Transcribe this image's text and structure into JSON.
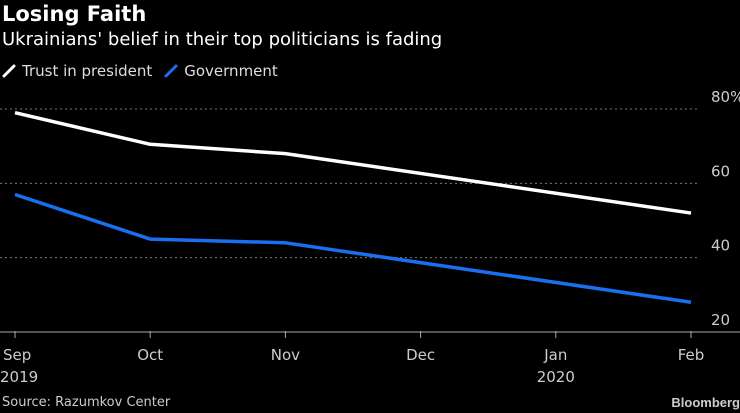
{
  "header": {
    "title": "Losing Faith",
    "subtitle": "Ukrainians' belief in their top politicians is fading"
  },
  "footer": {
    "source": "Source: Razumkov Center",
    "brand": "Bloomberg"
  },
  "chart_data": {
    "type": "line",
    "title": "Losing Faith",
    "subtitle": "Ukrainians' belief in their top politicians is fading",
    "xlabel": "",
    "ylabel": "",
    "x": [
      "Sep 2019",
      "Oct 2019",
      "Nov 2019",
      "Feb 2020"
    ],
    "x_ticks": [
      {
        "label": "Sep",
        "sublabel": "2019",
        "month_index": 0
      },
      {
        "label": "Oct",
        "sublabel": "",
        "month_index": 1
      },
      {
        "label": "Nov",
        "sublabel": "",
        "month_index": 2
      },
      {
        "label": "Dec",
        "sublabel": "",
        "month_index": 3
      },
      {
        "label": "Jan",
        "sublabel": "2020",
        "month_index": 4
      },
      {
        "label": "Feb",
        "sublabel": "",
        "month_index": 5
      }
    ],
    "y_ticks": [
      {
        "value": 80,
        "label": "80%"
      },
      {
        "value": 60,
        "label": "60"
      },
      {
        "value": 40,
        "label": "40"
      },
      {
        "value": 20,
        "label": "20"
      }
    ],
    "ylim": [
      20,
      80
    ],
    "grid": true,
    "legend_position": "top-left",
    "series": [
      {
        "name": "Trust in president",
        "color": "#ffffff",
        "month_index": [
          0,
          1,
          2,
          5
        ],
        "values": [
          79,
          70.5,
          68,
          52
        ]
      },
      {
        "name": "Government",
        "color": "#1a6ff0",
        "month_index": [
          0,
          1,
          2,
          5
        ],
        "values": [
          57,
          45,
          44,
          28
        ]
      }
    ]
  }
}
